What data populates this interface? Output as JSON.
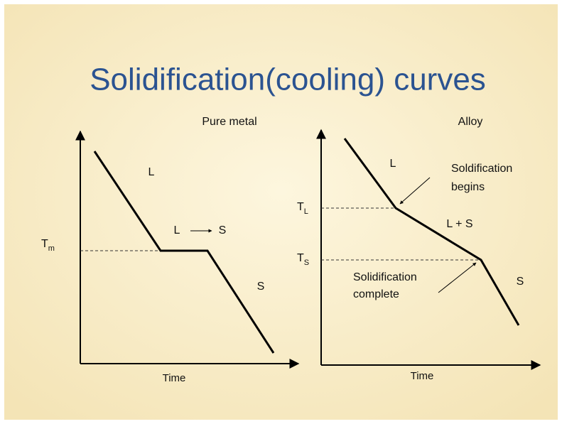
{
  "title": "Solidification(cooling) curves",
  "pure_metal": {
    "heading": "Pure metal",
    "liquid": "L",
    "transition": {
      "from": "L",
      "to": "S"
    },
    "solid": "S",
    "temperature": {
      "symbol": "T",
      "subscript": "m"
    },
    "x_axis": "Time"
  },
  "alloy": {
    "heading": "Alloy",
    "liquid": "L",
    "begins_note": [
      "Soldification",
      "begins"
    ],
    "mixed": "L + S",
    "liquidus": {
      "symbol": "T",
      "subscript": "L"
    },
    "solidus": {
      "symbol": "T",
      "subscript": "S"
    },
    "complete_note": [
      "Solidification",
      "complete"
    ],
    "solid": "S",
    "x_axis": "Time"
  }
}
